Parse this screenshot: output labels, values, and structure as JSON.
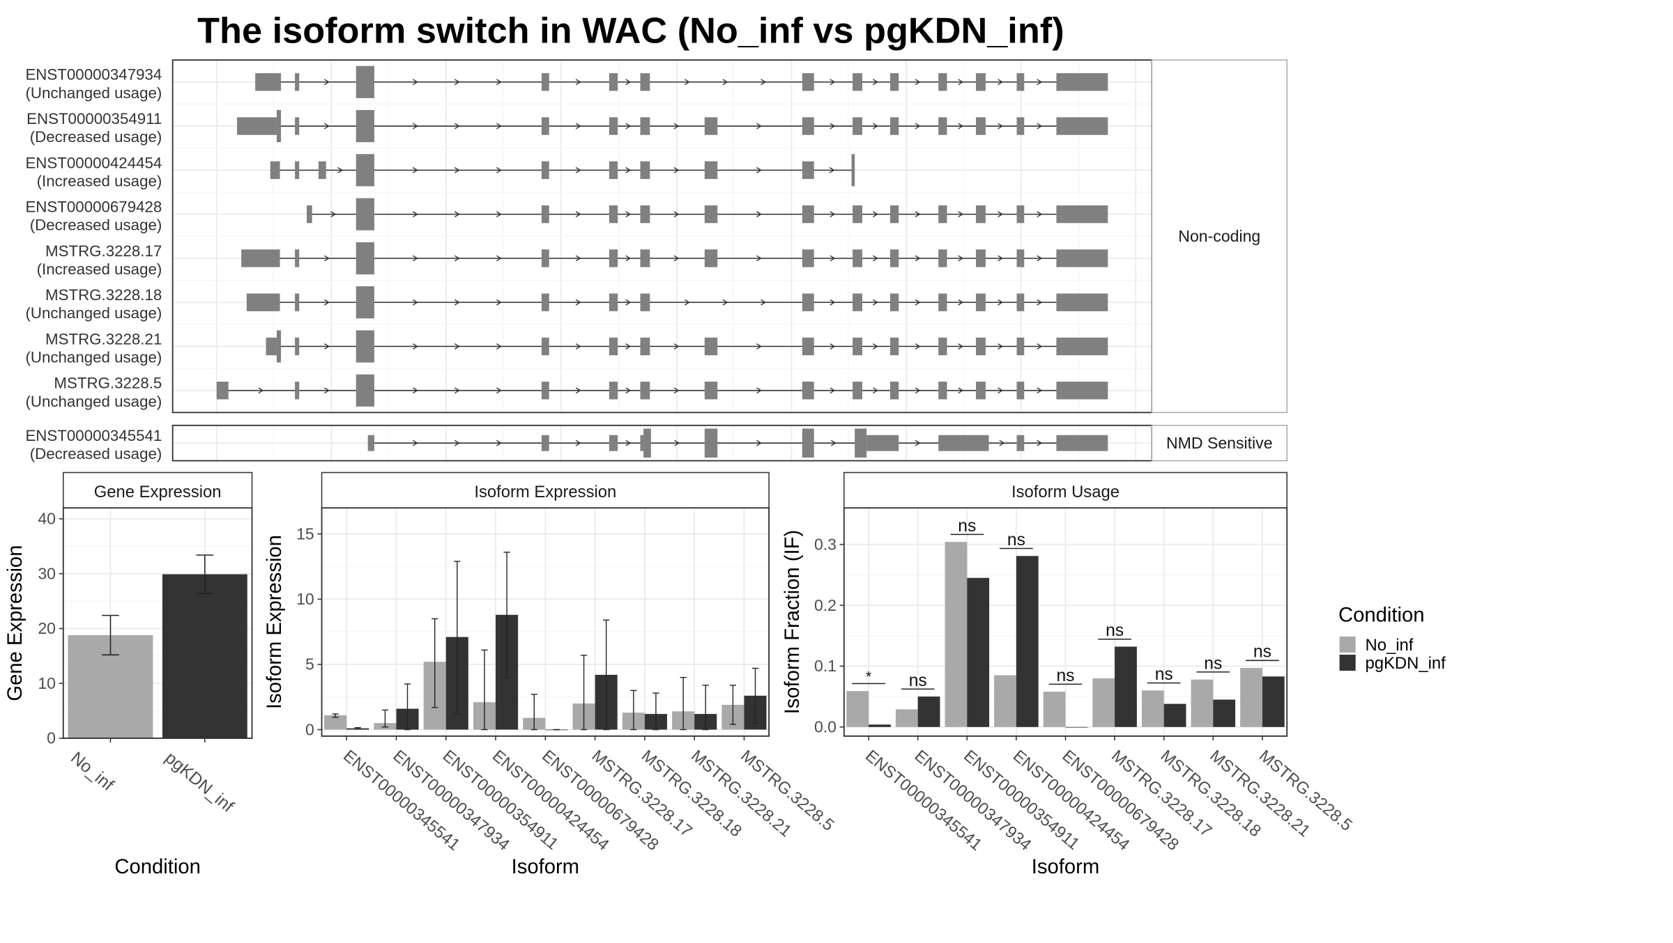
{
  "chart_data": {
    "title": "The isoform switch in WAC (No_inf vs pgKDN_inf)",
    "colors": {
      "No_inf": "#a9a9a9",
      "pgKDN_inf": "#333333",
      "exon": "#808080",
      "intron": "#333333",
      "grid": "#ebebeb",
      "panel_border": "#333333",
      "strip_bg": "#ffffff"
    },
    "structure_panel": {
      "type": "gene_structure",
      "groups": [
        {
          "label": "Non-coding",
          "transcripts": [
            {
              "id": "ENST00000347934",
              "usage": "(Unchanged usage)",
              "extra_exons": [
                [
                  238,
                  262,
                  1
                ],
                [
                  275,
                  279,
                  1
                ]
              ],
              "include_exon8": false,
              "end": "utr"
            },
            {
              "id": "ENST00000354911",
              "usage": "(Decreased usage)",
              "extra_exons": [
                [
                  221,
                  258,
                  1
                ],
                [
                  258,
                  262,
                  2
                ],
                [
                  275,
                  279,
                  1
                ]
              ],
              "include_exon8": true,
              "end": "utr"
            },
            {
              "id": "ENST00000424454",
              "usage": "(Increased usage)",
              "extra_exons": [
                [
                  252,
                  261,
                  1
                ],
                [
                  275,
                  279,
                  1
                ],
                [
                  297,
                  304,
                  1
                ]
              ],
              "include_exon8": true,
              "end": "truncated"
            },
            {
              "id": "ENST00000679428",
              "usage": "(Decreased usage)",
              "extra_exons": [
                [
                  286,
                  291,
                  1
                ]
              ],
              "include_exon8": true,
              "end": "utr"
            },
            {
              "id": "MSTRG.3228.17",
              "usage": "(Increased usage)",
              "extra_exons": [
                [
                  225,
                  261,
                  1
                ],
                [
                  275,
                  279,
                  1
                ]
              ],
              "include_exon8": true,
              "end": "utr"
            },
            {
              "id": "MSTRG.3228.18",
              "usage": "(Unchanged usage)",
              "extra_exons": [
                [
                  230,
                  261,
                  1
                ],
                [
                  275,
                  279,
                  1
                ]
              ],
              "include_exon8": false,
              "end": "utr"
            },
            {
              "id": "MSTRG.3228.21",
              "usage": "(Unchanged usage)",
              "extra_exons": [
                [
                  248,
                  258,
                  1
                ],
                [
                  258,
                  262,
                  2
                ],
                [
                  275,
                  279,
                  1
                ]
              ],
              "include_exon8": true,
              "end": "utr"
            },
            {
              "id": "MSTRG.3228.5",
              "usage": "(Unchanged usage)",
              "extra_exons": [
                [
                  202,
                  213,
                  1
                ],
                [
                  275,
                  279,
                  1
                ]
              ],
              "include_exon8": true,
              "end": "utr"
            }
          ]
        },
        {
          "label": "NMD Sensitive",
          "transcripts": [
            {
              "id": "ENST00000345541",
              "usage": "(Decreased usage)",
              "extra_exons": [],
              "include_exon8": false,
              "end": "nmd"
            }
          ]
        }
      ]
    },
    "gene_expression": {
      "type": "bar",
      "panel_title": "Gene Expression",
      "xlabel": "Condition",
      "ylabel": "Gene Expression",
      "ylim": [
        0,
        42
      ],
      "yticks": [
        0,
        10,
        20,
        30,
        40
      ],
      "categories": [
        "No_inf",
        "pgKDN_inf"
      ],
      "values": [
        18.8,
        29.9
      ],
      "error_low": [
        15.2,
        26.4
      ],
      "error_high": [
        22.4,
        33.4
      ]
    },
    "isoform_expression": {
      "type": "bar",
      "panel_title": "Isoform Expression",
      "xlabel": "Isoform",
      "ylabel": "Isoform Expression",
      "ylim": [
        -0.5,
        17
      ],
      "yticks": [
        0,
        5,
        10,
        15
      ],
      "categories": [
        "ENST00000345541",
        "ENST00000347934",
        "ENST00000354911",
        "ENST00000424454",
        "ENST00000679428",
        "MSTRG.3228.17",
        "MSTRG.3228.18",
        "MSTRG.3228.21",
        "MSTRG.3228.5"
      ],
      "series": [
        {
          "name": "No_inf",
          "values": [
            1.1,
            0.5,
            5.2,
            2.1,
            0.9,
            2.0,
            1.3,
            1.4,
            1.9
          ],
          "error_low": [
            0.95,
            0.2,
            1.7,
            0.0,
            0.0,
            0.0,
            0.0,
            0.0,
            0.4
          ],
          "error_high": [
            1.2,
            1.5,
            8.5,
            6.1,
            2.7,
            5.7,
            3.0,
            4.0,
            3.4
          ]
        },
        {
          "name": "pgKDN_inf",
          "values": [
            0.1,
            1.6,
            7.1,
            8.8,
            0.0,
            4.2,
            1.2,
            1.2,
            2.6
          ],
          "error_low": [
            0.05,
            0.0,
            1.2,
            4.0,
            0.0,
            0.0,
            0.0,
            0.0,
            0.5
          ],
          "error_high": [
            0.15,
            3.5,
            12.9,
            13.6,
            0.0,
            8.4,
            2.8,
            3.4,
            4.7
          ]
        }
      ]
    },
    "isoform_usage": {
      "type": "bar",
      "panel_title": "Isoform Usage",
      "xlabel": "Isoform",
      "ylabel": "Isoform Fraction (IF)",
      "ylim": [
        -0.015,
        0.36
      ],
      "yticks": [
        0.0,
        0.1,
        0.2,
        0.3
      ],
      "ytick_labels": [
        "0.0",
        "0.1",
        "0.2",
        "0.3"
      ],
      "categories": [
        "ENST00000345541",
        "ENST00000347934",
        "ENST00000354911",
        "ENST00000424454",
        "ENST00000679428",
        "MSTRG.3228.17",
        "MSTRG.3228.18",
        "MSTRG.3228.21",
        "MSTRG.3228.5"
      ],
      "series": [
        {
          "name": "No_inf",
          "values": [
            0.059,
            0.029,
            0.304,
            0.085,
            0.058,
            0.08,
            0.06,
            0.078,
            0.097
          ]
        },
        {
          "name": "pgKDN_inf",
          "values": [
            0.004,
            0.05,
            0.245,
            0.281,
            0.0,
            0.132,
            0.038,
            0.045,
            0.083
          ]
        }
      ],
      "significance": [
        "*",
        "ns",
        "ns",
        "ns",
        "ns",
        "ns",
        "ns",
        "ns",
        "ns"
      ]
    },
    "legend": {
      "title": "Condition",
      "entries": [
        "No_inf",
        "pgKDN_inf"
      ],
      "placement": "right"
    }
  }
}
